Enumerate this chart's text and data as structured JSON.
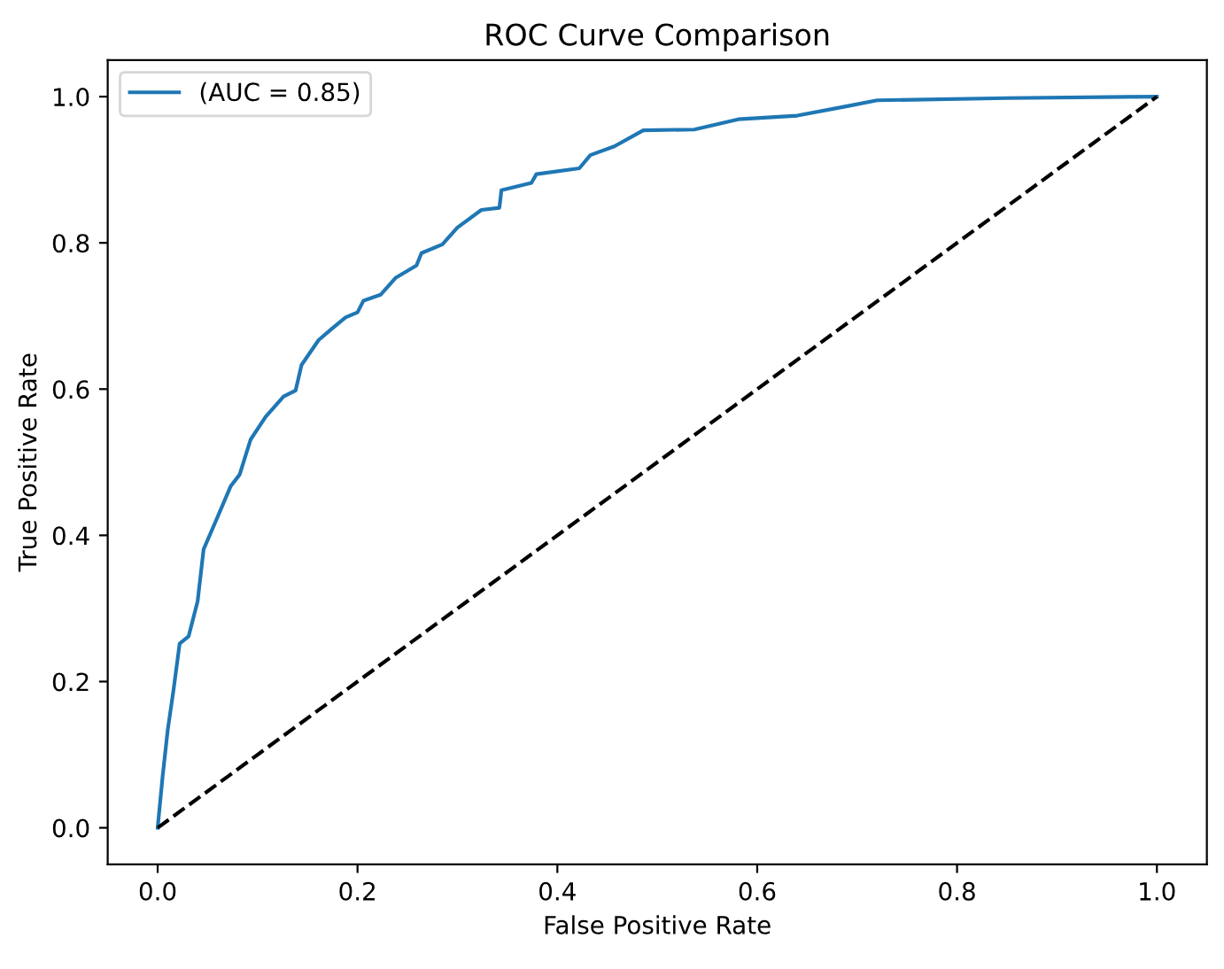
{
  "chart_data": {
    "type": "line",
    "title": "ROC Curve Comparison",
    "xlabel": "False Positive Rate",
    "ylabel": "True Positive Rate",
    "xlim": [
      -0.05,
      1.05
    ],
    "ylim": [
      -0.05,
      1.05
    ],
    "xticks": [
      {
        "value": 0,
        "label": "0.0"
      },
      0.2,
      0.4,
      0.6,
      0.8,
      {
        "value": 1,
        "label": "1.0"
      }
    ],
    "yticks": [
      {
        "value": 0,
        "label": "0.0"
      },
      0.2,
      0.4,
      0.6,
      0.8,
      {
        "value": 1,
        "label": "1.0"
      }
    ],
    "grid": false,
    "legend": "top left",
    "series": [
      {
        "name": "(AUC = 0.85)",
        "color": "#1f77b4",
        "line_style": "solid",
        "x": [
          0,
          0.005,
          0.01,
          0.016,
          0.022,
          0.031,
          0.04,
          0.046,
          0.058,
          0.073,
          0.082,
          0.093,
          0.108,
          0.126,
          0.138,
          0.144,
          0.161,
          0.173,
          0.188,
          0.2,
          0.206,
          0.223,
          0.238,
          0.259,
          0.264,
          0.285,
          0.3,
          0.324,
          0.342,
          0.344,
          0.374,
          0.379,
          0.422,
          0.433,
          0.457,
          0.486,
          0.537,
          0.581,
          0.64,
          0.69,
          0.72,
          0.85,
          1.0
        ],
        "values": [
          0,
          0.071,
          0.133,
          0.19,
          0.252,
          0.262,
          0.31,
          0.381,
          0.419,
          0.467,
          0.483,
          0.531,
          0.562,
          0.59,
          0.598,
          0.633,
          0.667,
          0.681,
          0.698,
          0.705,
          0.721,
          0.729,
          0.752,
          0.769,
          0.786,
          0.798,
          0.821,
          0.845,
          0.848,
          0.872,
          0.882,
          0.894,
          0.902,
          0.92,
          0.932,
          0.954,
          0.955,
          0.969,
          0.974,
          0.987,
          0.995,
          0.998,
          1.0
        ]
      },
      {
        "color": "#000000",
        "line_style": "dashed",
        "x": [
          0,
          1
        ],
        "values": [
          0,
          1
        ]
      }
    ]
  }
}
